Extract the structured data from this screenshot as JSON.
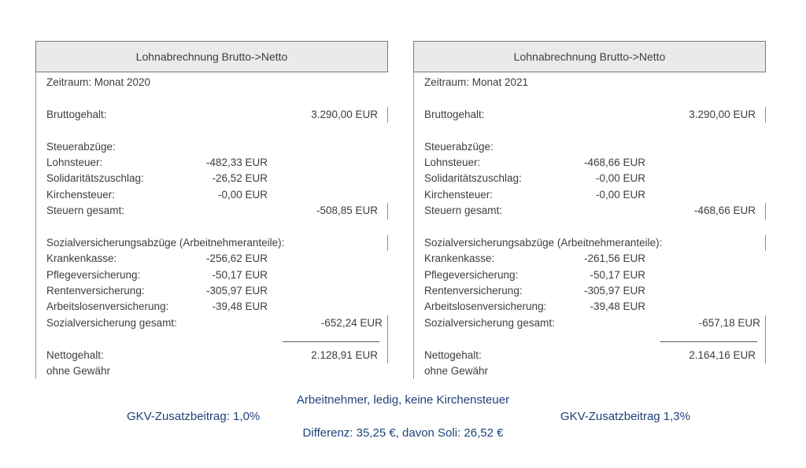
{
  "panels": [
    {
      "title": "Lohnabrechnung Brutto->Netto",
      "zeitraum": "Zeitraum: Monat 2020",
      "brutto": {
        "label": "Bruttogehalt:",
        "value": "3.290,00 EUR"
      },
      "steuern": {
        "header": "Steuerabzüge:",
        "rows": [
          {
            "label": "Lohnsteuer:",
            "value": "-482,33 EUR"
          },
          {
            "label": "Solidaritätszuschlag:",
            "value": "-26,52 EUR"
          },
          {
            "label": "Kirchensteuer:",
            "value": "-0,00 EUR"
          }
        ],
        "total_label": "Steuern gesamt:",
        "total_value": "-508,85 EUR"
      },
      "sozial": {
        "header": "Sozialversicherungsabzüge (Arbeitnehmeranteile):",
        "rows": [
          {
            "label": "Krankenkasse:",
            "value": "-256,62 EUR"
          },
          {
            "label": "Pflegeversicherung:",
            "value": "-50,17 EUR"
          },
          {
            "label": "Rentenversicherung:",
            "value": "-305,97 EUR"
          },
          {
            "label": "Arbeitslosenversicherung:",
            "value": "-39,48 EUR"
          }
        ],
        "total_label": "Sozialversicherung gesamt:",
        "total_value": "-652,24 EUR"
      },
      "netto": {
        "label": "Nettogehalt:",
        "value": "2.128,91 EUR"
      },
      "disclaimer": "ohne Gewähr"
    },
    {
      "title": "Lohnabrechnung Brutto->Netto",
      "zeitraum": "Zeitraum: Monat 2021",
      "brutto": {
        "label": "Bruttogehalt:",
        "value": "3.290,00 EUR"
      },
      "steuern": {
        "header": "Steuerabzüge:",
        "rows": [
          {
            "label": "Lohnsteuer:",
            "value": "-468,66 EUR"
          },
          {
            "label": "Solidaritätszuschlag:",
            "value": "-0,00 EUR"
          },
          {
            "label": "Kirchensteuer:",
            "value": "-0,00 EUR"
          }
        ],
        "total_label": "Steuern gesamt:",
        "total_value": "-468,66 EUR"
      },
      "sozial": {
        "header": "Sozialversicherungsabzüge (Arbeitnehmeranteile):",
        "rows": [
          {
            "label": "Krankenkasse:",
            "value": "-261,56 EUR"
          },
          {
            "label": "Pflegeversicherung:",
            "value": "-50,17 EUR"
          },
          {
            "label": "Rentenversicherung:",
            "value": "-305,97 EUR"
          },
          {
            "label": "Arbeitslosenversicherung:",
            "value": "-39,48 EUR"
          }
        ],
        "total_label": "Sozialversicherung gesamt:",
        "total_value": "-657,18 EUR"
      },
      "netto": {
        "label": "Nettogehalt:",
        "value": "2.164,16 EUR"
      },
      "disclaimer": "ohne Gewähr"
    }
  ],
  "footnotes": {
    "profile_line": "Arbeitnehmer, ledig, keine Kirchensteuer",
    "gkv_left": "GKV-Zusatzbeitrag: 1,0%",
    "gkv_right": "GKV-Zusatzbeitrag 1,3%",
    "difference_line": "Differenz: 35,25 €, davon Soli: 26,52 €"
  },
  "colors": {
    "body_text": "#3e3e3e",
    "note_blue": "#1f4279",
    "header_bg": "#eaeaea",
    "header_border": "#7a7a7a"
  }
}
